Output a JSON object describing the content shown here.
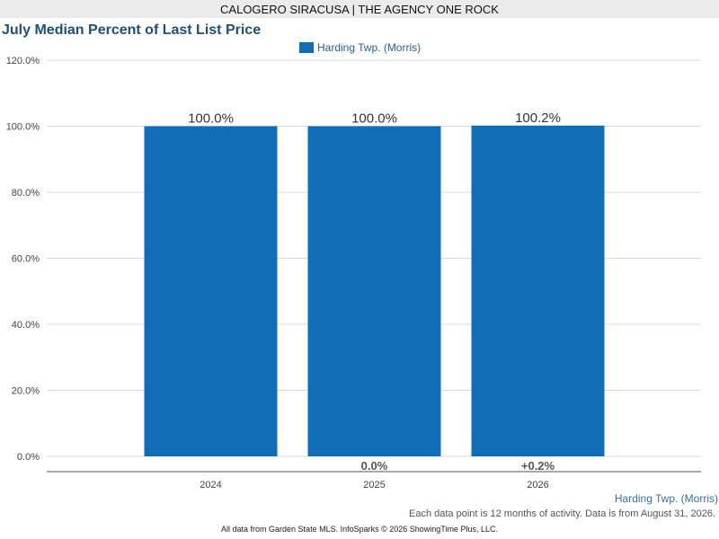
{
  "header": {
    "agent": "CALOGERO SIRACUSA | THE AGENCY ONE ROCK"
  },
  "colors": {
    "bar": "#106db6",
    "grid": "#d9d9d9",
    "axis": "#555555"
  },
  "chart_data": {
    "type": "bar",
    "title": "July Median Percent of Last List Price",
    "xlabel": "",
    "ylabel": "",
    "categories": [
      "2024",
      "2025",
      "2026"
    ],
    "series": [
      {
        "name": "Harding Twp. (Morris)",
        "values": [
          100.0,
          100.0,
          100.2
        ]
      }
    ],
    "value_labels": [
      "100.0%",
      "100.0%",
      "100.2%"
    ],
    "change_labels": [
      "",
      "0.0%",
      "+0.2%"
    ],
    "y_ticks": [
      "0.0%",
      "20.0%",
      "40.0%",
      "60.0%",
      "80.0%",
      "100.0%",
      "120.0%"
    ],
    "ylim": [
      0,
      120
    ],
    "grid": true,
    "legend": "top-center"
  },
  "footer": {
    "region": "Harding Twp. (Morris)",
    "note": "Each data point is 12 months of activity. Data is from August 31, 2026.",
    "source": "All data from Garden State MLS. InfoSparks © 2026 ShowingTime Plus, LLC."
  }
}
